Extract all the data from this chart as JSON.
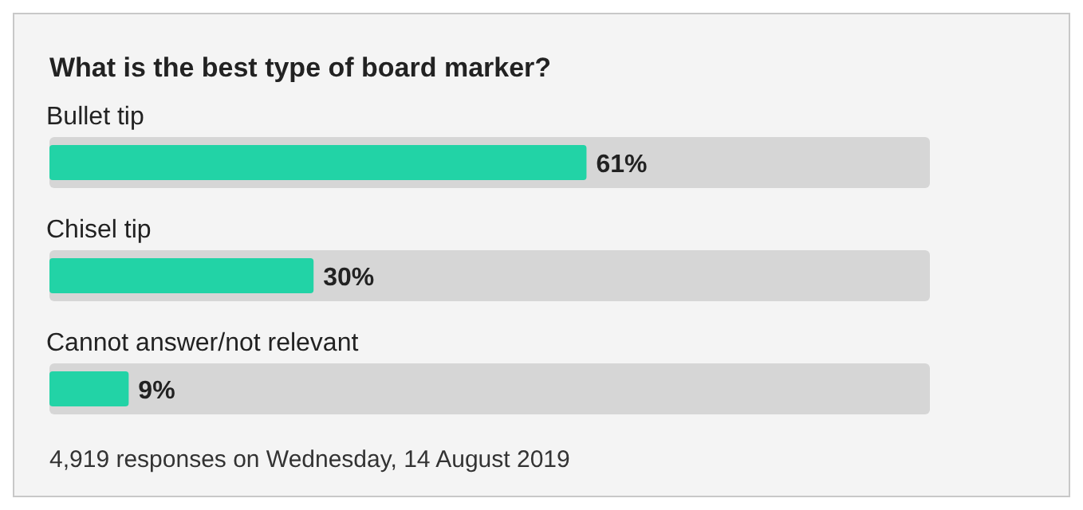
{
  "chart_data": {
    "type": "bar",
    "orientation": "horizontal",
    "title": "What is the best type of board marker?",
    "categories": [
      "Bullet tip",
      "Chisel tip",
      "Cannot answer/not relevant"
    ],
    "series": [
      {
        "color": "#22d3a6",
        "values": [
          61,
          30,
          9
        ],
        "value_labels": [
          "61%",
          "30%",
          "9%"
        ]
      },
      {
        "color": "#d6d6d6",
        "values": [
          100,
          100,
          100
        ]
      }
    ],
    "xlim": [
      0,
      100
    ],
    "tick_labels": false,
    "grid": false,
    "legend": false,
    "annotations": [
      "4,919 responses on Wednesday, 14 August 2019"
    ]
  }
}
